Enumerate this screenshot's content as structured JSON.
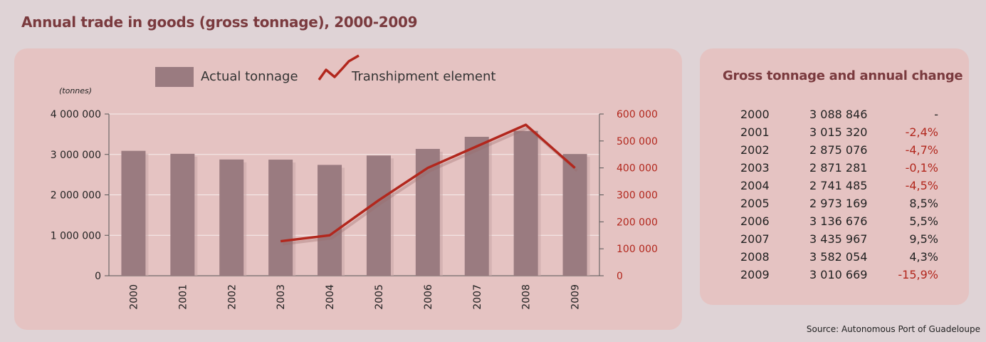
{
  "page": {
    "title": "Annual trade in goods (gross tonnage), 2000-2009",
    "source": "Source: Autonomous Port of Guadeloupe"
  },
  "colors": {
    "background": "#dfd3d6",
    "panel": "#e5c3c2",
    "bar": "#9a7b80",
    "line": "#b2271d",
    "title": "#7a3a3e"
  },
  "chart_data": {
    "type": "bar",
    "title": "",
    "unit_label": "(tonnes)",
    "legend": [
      "Actual tonnage",
      "Transhipment element"
    ],
    "legend_position": "top",
    "categories": [
      "2000",
      "2001",
      "2002",
      "2003",
      "2004",
      "2005",
      "2006",
      "2007",
      "2008",
      "2009"
    ],
    "series": [
      {
        "name": "Actual tonnage",
        "type": "bar",
        "axis": "left",
        "values": [
          3088846,
          3015320,
          2875076,
          2871281,
          2741485,
          2973169,
          3136676,
          3435967,
          3582054,
          3010669
        ]
      },
      {
        "name": "Transhipment element",
        "type": "line",
        "axis": "right",
        "values": [
          null,
          null,
          null,
          128000,
          150000,
          280000,
          400000,
          480000,
          560000,
          400000
        ]
      }
    ],
    "left_axis": {
      "range": [
        0,
        4000000
      ],
      "ticks": [
        0,
        1000000,
        2000000,
        3000000,
        4000000
      ],
      "tick_labels": [
        "0",
        "1 000 000",
        "2 000 000",
        "3 000 000",
        "4 000 000"
      ]
    },
    "right_axis": {
      "range": [
        0,
        600000
      ],
      "ticks": [
        0,
        100000,
        200000,
        300000,
        400000,
        500000,
        600000
      ],
      "tick_labels": [
        "0",
        "100 000",
        "200 000",
        "300 000",
        "400 000",
        "500 000",
        "600 000"
      ]
    },
    "grid": true
  },
  "table": {
    "title": "Gross tonnage and annual change",
    "rows": [
      {
        "year": "2000",
        "tonnage": "3 088 846",
        "change": "-",
        "negative": false
      },
      {
        "year": "2001",
        "tonnage": "3 015 320",
        "change": "-2,4%",
        "negative": true
      },
      {
        "year": "2002",
        "tonnage": "2 875 076",
        "change": "-4,7%",
        "negative": true
      },
      {
        "year": "2003",
        "tonnage": "2 871 281",
        "change": "-0,1%",
        "negative": true
      },
      {
        "year": "2004",
        "tonnage": "2 741 485",
        "change": "-4,5%",
        "negative": true
      },
      {
        "year": "2005",
        "tonnage": "2 973 169",
        "change": "8,5%",
        "negative": false
      },
      {
        "year": "2006",
        "tonnage": "3 136 676",
        "change": "5,5%",
        "negative": false
      },
      {
        "year": "2007",
        "tonnage": "3 435 967",
        "change": "9,5%",
        "negative": false
      },
      {
        "year": "2008",
        "tonnage": "3 582 054",
        "change": "4,3%",
        "negative": false
      },
      {
        "year": "2009",
        "tonnage": "3 010 669",
        "change": "-15,9%",
        "negative": true
      }
    ]
  }
}
